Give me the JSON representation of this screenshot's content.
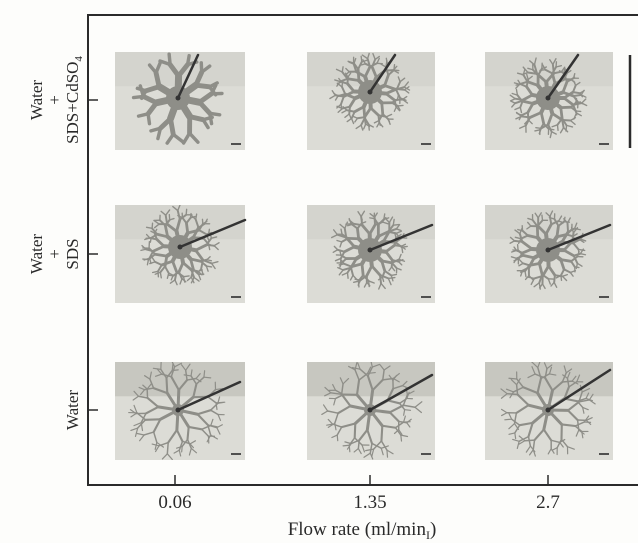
{
  "figure": {
    "x_axis": {
      "label": "Flow rate (ml/min",
      "label_sub": "I",
      "label_close": ")",
      "ticks": [
        "0.06",
        "1.35",
        "2.7"
      ]
    },
    "rows": [
      {
        "lines": [
          "Water",
          "+",
          "SDS+CdSO"
        ],
        "subscript": "4"
      },
      {
        "lines": [
          "Water",
          "+",
          "SDS"
        ]
      },
      {
        "lines": [
          "Water"
        ]
      }
    ],
    "panels": [
      {
        "row": 0,
        "col": 0,
        "pattern": "coarse-lobed"
      },
      {
        "row": 0,
        "col": 1,
        "pattern": "fine-branched"
      },
      {
        "row": 0,
        "col": 2,
        "pattern": "fine-branched"
      },
      {
        "row": 1,
        "col": 0,
        "pattern": "compact-branched"
      },
      {
        "row": 1,
        "col": 1,
        "pattern": "dense-branched"
      },
      {
        "row": 1,
        "col": 2,
        "pattern": "dense-branched"
      },
      {
        "row": 2,
        "col": 0,
        "pattern": "dendritic"
      },
      {
        "row": 2,
        "col": 1,
        "pattern": "dendritic"
      },
      {
        "row": 2,
        "col": 2,
        "pattern": "dendritic"
      }
    ],
    "colors": {
      "frame": "#2b2b2b",
      "panel_bg": "#dcdcd6",
      "pattern_fill": "#8e8e88",
      "needle": "#333333"
    }
  }
}
